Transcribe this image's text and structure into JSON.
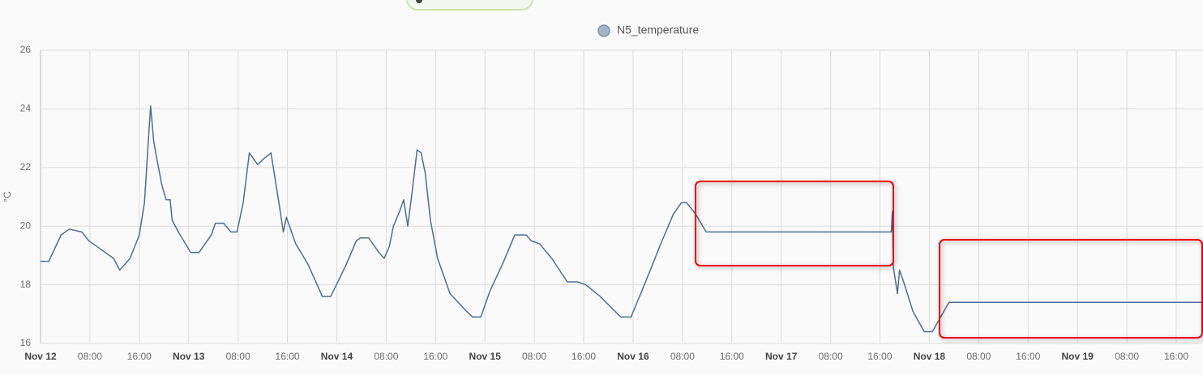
{
  "chart_data": {
    "type": "line",
    "y_label": "°C",
    "ylim": [
      16,
      26
    ],
    "yticks": [
      16,
      18,
      20,
      22,
      24,
      26
    ],
    "xlim": [
      "Nov 12 00:00",
      "Nov 19 20:20"
    ],
    "xticks": [
      {
        "value": "Nov 12 00:00",
        "label": "Nov 12"
      },
      {
        "value": "Nov 12 08:00",
        "label": "08:00"
      },
      {
        "value": "Nov 12 16:00",
        "label": "16:00"
      },
      {
        "value": "Nov 13 00:00",
        "label": "Nov 13"
      },
      {
        "value": "Nov 13 08:00",
        "label": "08:00"
      },
      {
        "value": "Nov 13 16:00",
        "label": "16:00"
      },
      {
        "value": "Nov 14 00:00",
        "label": "Nov 14"
      },
      {
        "value": "Nov 14 08:00",
        "label": "08:00"
      },
      {
        "value": "Nov 14 16:00",
        "label": "16:00"
      },
      {
        "value": "Nov 15 00:00",
        "label": "Nov 15"
      },
      {
        "value": "Nov 15 08:00",
        "label": "08:00"
      },
      {
        "value": "Nov 15 16:00",
        "label": "16:00"
      },
      {
        "value": "Nov 16 00:00",
        "label": "Nov 16"
      },
      {
        "value": "Nov 16 08:00",
        "label": "08:00"
      },
      {
        "value": "Nov 16 16:00",
        "label": "16:00"
      },
      {
        "value": "Nov 17 00:00",
        "label": "Nov 17"
      },
      {
        "value": "Nov 17 08:00",
        "label": "08:00"
      },
      {
        "value": "Nov 17 16:00",
        "label": "16:00"
      },
      {
        "value": "Nov 18 00:00",
        "label": "Nov 18"
      },
      {
        "value": "Nov 18 08:00",
        "label": "08:00"
      },
      {
        "value": "Nov 18 16:00",
        "label": "16:00"
      },
      {
        "value": "Nov 19 00:00",
        "label": "Nov 19"
      },
      {
        "value": "Nov 19 08:00",
        "label": "08:00"
      },
      {
        "value": "Nov 19 16:00",
        "label": "16:00"
      }
    ],
    "grid": true,
    "x": [
      "Nov 12 00:00",
      "Nov 12 01:20",
      "Nov 12 03:20",
      "Nov 12 04:40",
      "Nov 12 06:40",
      "Nov 12 07:50",
      "Nov 12 09:50",
      "Nov 12 11:50",
      "Nov 12 12:50",
      "Nov 12 14:30",
      "Nov 12 16:00",
      "Nov 12 16:50",
      "Nov 12 17:30",
      "Nov 12 17:50",
      "Nov 12 18:20",
      "Nov 12 18:50",
      "Nov 12 19:40",
      "Nov 12 20:20",
      "Nov 12 21:00",
      "Nov 12 21:20",
      "Nov 12 22:20",
      "Nov 13 00:20",
      "Nov 13 01:40",
      "Nov 13 03:40",
      "Nov 13 04:20",
      "Nov 13 05:40",
      "Nov 13 06:50",
      "Nov 13 07:50",
      "Nov 13 08:50",
      "Nov 13 09:50",
      "Nov 13 11:10",
      "Nov 13 12:10",
      "Nov 13 13:20",
      "Nov 13 14:10",
      "Nov 13 14:50",
      "Nov 13 15:20",
      "Nov 13 15:50",
      "Nov 13 17:20",
      "Nov 13 19:20",
      "Nov 13 21:40",
      "Nov 13 23:00",
      "Nov 14 01:20",
      "Nov 14 03:10",
      "Nov 14 03:50",
      "Nov 14 05:10",
      "Nov 14 06:50",
      "Nov 14 07:40",
      "Nov 14 08:30",
      "Nov 14 09:10",
      "Nov 14 10:10",
      "Nov 14 10:50",
      "Nov 14 11:30",
      "Nov 14 12:10",
      "Nov 14 13:00",
      "Nov 14 13:40",
      "Nov 14 14:20",
      "Nov 14 15:10",
      "Nov 14 16:20",
      "Nov 14 18:20",
      "Nov 14 21:00",
      "Nov 14 22:00",
      "Nov 14 23:20",
      "Nov 15 00:50",
      "Nov 15 02:50",
      "Nov 15 04:50",
      "Nov 15 06:40",
      "Nov 15 07:30",
      "Nov 15 08:50",
      "Nov 15 10:50",
      "Nov 15 13:20",
      "Nov 15 15:00",
      "Nov 15 16:20",
      "Nov 15 18:40",
      "Nov 15 22:00",
      "Nov 15 23:40",
      "Nov 16 01:50",
      "Nov 16 04:30",
      "Nov 16 06:30",
      "Nov 16 07:50",
      "Nov 16 08:40",
      "Nov 16 10:10",
      "Nov 16 11:50",
      "Nov 17 17:50",
      "Nov 17 18:00",
      "Nov 17 18:10",
      "Nov 17 18:50",
      "Nov 17 19:10",
      "Nov 17 19:50",
      "Nov 17 21:20",
      "Nov 17 23:10",
      "Nov 18 00:30",
      "Nov 18 01:50",
      "Nov 18 03:10",
      "Nov 19 20:20"
    ],
    "series": [
      {
        "name": "N5_temperature",
        "color": "#4a6f96",
        "values": [
          18.8,
          18.8,
          19.7,
          19.9,
          19.8,
          19.5,
          19.2,
          18.9,
          18.5,
          18.9,
          19.7,
          20.8,
          23.0,
          24.1,
          22.9,
          22.3,
          21.4,
          20.9,
          20.9,
          20.2,
          19.8,
          19.1,
          19.1,
          19.7,
          20.1,
          20.1,
          19.8,
          19.8,
          20.8,
          22.5,
          22.1,
          22.3,
          22.5,
          21.4,
          20.5,
          19.8,
          20.3,
          19.4,
          18.7,
          17.6,
          17.6,
          18.6,
          19.5,
          19.6,
          19.6,
          19.1,
          18.9,
          19.3,
          20.0,
          20.5,
          20.9,
          20.0,
          21.1,
          22.6,
          22.5,
          21.8,
          20.2,
          18.9,
          17.7,
          17.1,
          16.9,
          16.9,
          17.8,
          18.7,
          19.7,
          19.7,
          19.5,
          19.4,
          18.9,
          18.1,
          18.1,
          18.0,
          17.6,
          16.9,
          16.9,
          18.0,
          19.4,
          20.4,
          20.8,
          20.8,
          20.4,
          19.8,
          19.8,
          20.5,
          18.6,
          17.7,
          18.5,
          18.1,
          17.1,
          16.4,
          16.4,
          16.9,
          17.4,
          17.4
        ]
      }
    ]
  }
}
